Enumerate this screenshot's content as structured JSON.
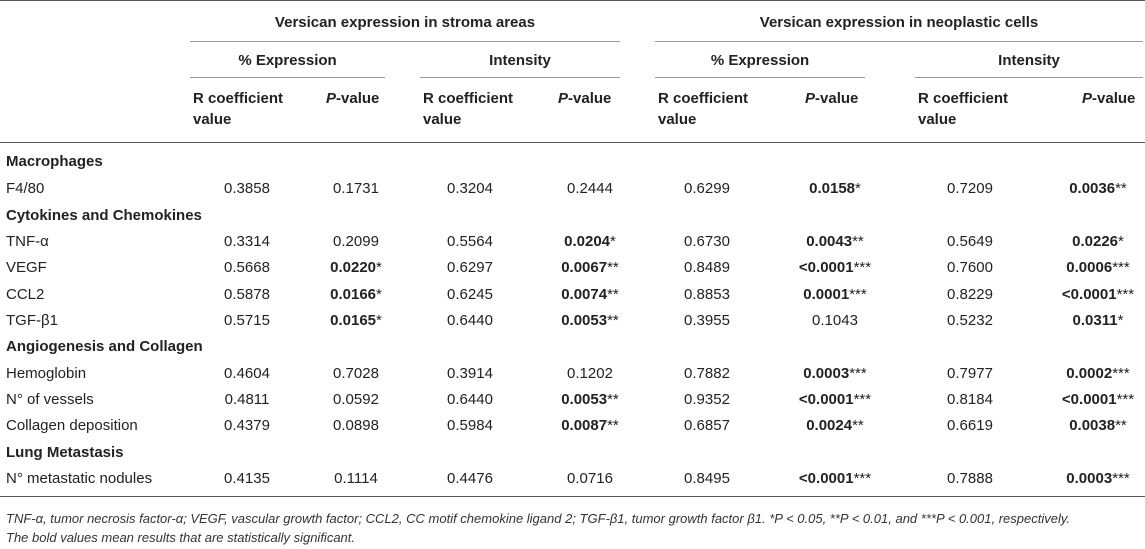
{
  "groups": [
    {
      "label": "Versican expression in stroma areas"
    },
    {
      "label": "Versican expression in neoplastic cells"
    }
  ],
  "measures": [
    "% Expression",
    "Intensity",
    "% Expression",
    "Intensity"
  ],
  "subheaders": {
    "r_line1": "R coefficient",
    "r_line2": "value",
    "p_italic": "P",
    "p_rest": "-value"
  },
  "rows": [
    {
      "type": "section",
      "label": "Macrophages"
    },
    {
      "type": "data",
      "label": "F4/80",
      "cells": [
        {
          "v": "0.3858",
          "bold": false
        },
        {
          "v": "0.1731",
          "bold": false
        },
        {
          "v": "0.3204",
          "bold": false
        },
        {
          "v": "0.2444",
          "bold": false
        },
        {
          "v": "0.6299",
          "bold": false
        },
        {
          "v": "0.0158",
          "bold": true,
          "s": "*"
        },
        {
          "v": "0.7209",
          "bold": false
        },
        {
          "v": "0.0036",
          "bold": true,
          "s": "**"
        }
      ]
    },
    {
      "type": "section",
      "label": "Cytokines and Chemokines"
    },
    {
      "type": "data",
      "label": "TNF-α",
      "cells": [
        {
          "v": "0.3314",
          "bold": false
        },
        {
          "v": "0.2099",
          "bold": false
        },
        {
          "v": "0.5564",
          "bold": false
        },
        {
          "v": "0.0204",
          "bold": true,
          "s": "*"
        },
        {
          "v": "0.6730",
          "bold": false
        },
        {
          "v": "0.0043",
          "bold": true,
          "s": "**"
        },
        {
          "v": "0.5649",
          "bold": false
        },
        {
          "v": "0.0226",
          "bold": true,
          "s": "*"
        }
      ]
    },
    {
      "type": "data",
      "label": "VEGF",
      "cells": [
        {
          "v": "0.5668",
          "bold": false
        },
        {
          "v": "0.0220",
          "bold": true,
          "s": "*"
        },
        {
          "v": "0.6297",
          "bold": false
        },
        {
          "v": "0.0067",
          "bold": true,
          "s": "**"
        },
        {
          "v": "0.8489",
          "bold": false
        },
        {
          "v": "<0.0001",
          "bold": true,
          "s": "***"
        },
        {
          "v": "0.7600",
          "bold": false
        },
        {
          "v": "0.0006",
          "bold": true,
          "s": "***"
        }
      ]
    },
    {
      "type": "data",
      "label": "CCL2",
      "cells": [
        {
          "v": "0.5878",
          "bold": false
        },
        {
          "v": "0.0166",
          "bold": true,
          "s": "*"
        },
        {
          "v": "0.6245",
          "bold": false
        },
        {
          "v": "0.0074",
          "bold": true,
          "s": "**"
        },
        {
          "v": "0.8853",
          "bold": false
        },
        {
          "v": "0.0001",
          "bold": true,
          "s": "***"
        },
        {
          "v": "0.8229",
          "bold": false
        },
        {
          "v": "<0.0001",
          "bold": true,
          "s": "***"
        }
      ]
    },
    {
      "type": "data",
      "label": "TGF-β1",
      "cells": [
        {
          "v": "0.5715",
          "bold": false
        },
        {
          "v": "0.0165",
          "bold": true,
          "s": "*"
        },
        {
          "v": "0.6440",
          "bold": false
        },
        {
          "v": "0.0053",
          "bold": true,
          "s": "**"
        },
        {
          "v": "0.3955",
          "bold": false
        },
        {
          "v": "0.1043",
          "bold": false
        },
        {
          "v": "0.5232",
          "bold": false
        },
        {
          "v": "0.0311",
          "bold": true,
          "s": "*"
        }
      ]
    },
    {
      "type": "section",
      "label": "Angiogenesis and Collagen"
    },
    {
      "type": "data",
      "label": "Hemoglobin",
      "cells": [
        {
          "v": "0.4604",
          "bold": false
        },
        {
          "v": "0.7028",
          "bold": false
        },
        {
          "v": "0.3914",
          "bold": false
        },
        {
          "v": "0.1202",
          "bold": false
        },
        {
          "v": "0.7882",
          "bold": false
        },
        {
          "v": "0.0003",
          "bold": true,
          "s": "***"
        },
        {
          "v": "0.7977",
          "bold": false
        },
        {
          "v": "0.0002",
          "bold": true,
          "s": "***"
        }
      ]
    },
    {
      "type": "data",
      "label": "N° of vessels",
      "cells": [
        {
          "v": "0.4811",
          "bold": false
        },
        {
          "v": "0.0592",
          "bold": false
        },
        {
          "v": "0.6440",
          "bold": false
        },
        {
          "v": "0.0053",
          "bold": true,
          "s": "**"
        },
        {
          "v": "0.9352",
          "bold": false
        },
        {
          "v": "<0.0001",
          "bold": true,
          "s": "***"
        },
        {
          "v": "0.8184",
          "bold": false
        },
        {
          "v": "<0.0001",
          "bold": true,
          "s": "***"
        }
      ]
    },
    {
      "type": "data",
      "label": "Collagen deposition",
      "cells": [
        {
          "v": "0.4379",
          "bold": false
        },
        {
          "v": "0.0898",
          "bold": false
        },
        {
          "v": "0.5984",
          "bold": false
        },
        {
          "v": "0.0087",
          "bold": true,
          "s": "**"
        },
        {
          "v": "0.6857",
          "bold": false
        },
        {
          "v": "0.0024",
          "bold": true,
          "s": "**"
        },
        {
          "v": "0.6619",
          "bold": false
        },
        {
          "v": "0.0038",
          "bold": true,
          "s": "**"
        }
      ]
    },
    {
      "type": "section",
      "label": "Lung Metastasis"
    },
    {
      "type": "data",
      "label": "N° metastatic nodules",
      "cells": [
        {
          "v": "0.4135",
          "bold": false
        },
        {
          "v": "0.1114",
          "bold": false
        },
        {
          "v": "0.4476",
          "bold": false
        },
        {
          "v": "0.0716",
          "bold": false
        },
        {
          "v": "0.8495",
          "bold": false
        },
        {
          "v": "<0.0001",
          "bold": true,
          "s": "***"
        },
        {
          "v": "0.7888",
          "bold": false
        },
        {
          "v": "0.0003",
          "bold": true,
          "s": "***"
        }
      ]
    }
  ],
  "footnote": {
    "line1": "TNF-α, tumor necrosis factor-α; VEGF, vascular growth factor; CCL2, CC motif chemokine ligand 2; TGF-β1, tumor growth factor β1. *P < 0.05, **P < 0.01, and ***P < 0.001, respectively.",
    "line2": "The bold values mean results that are statistically significant."
  }
}
